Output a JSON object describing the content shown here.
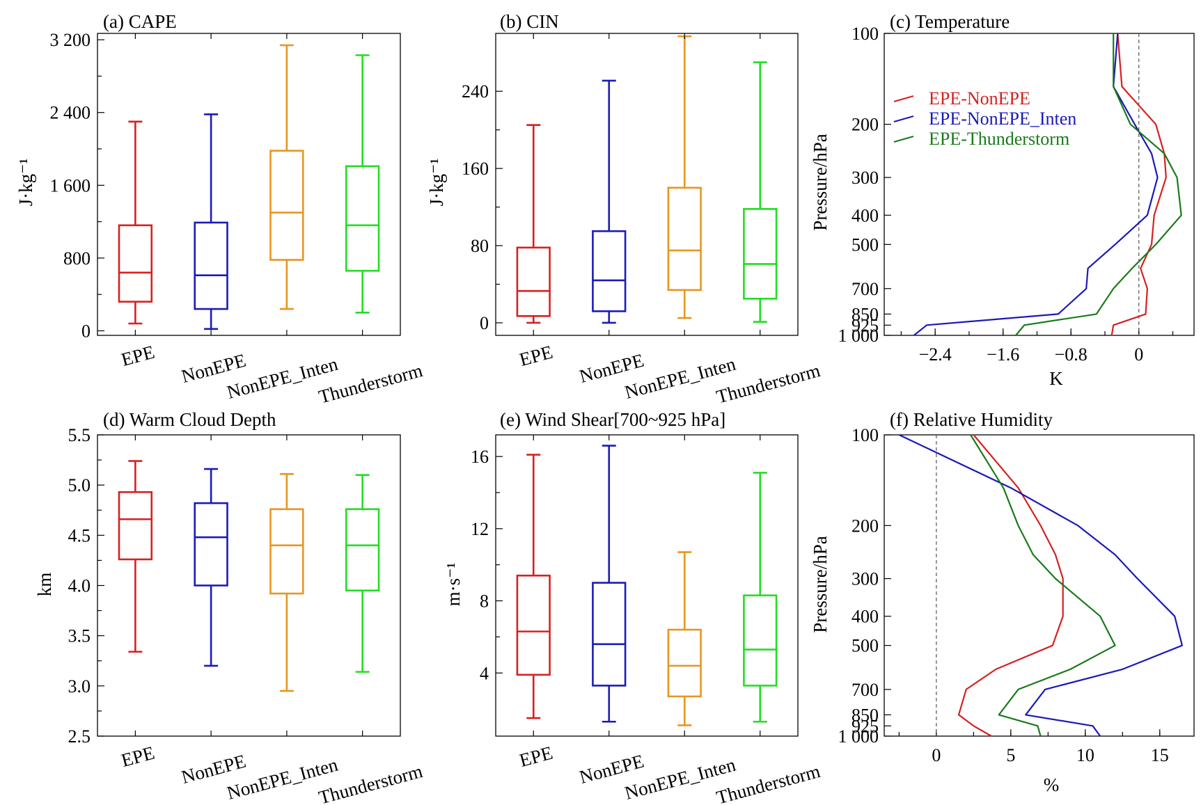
{
  "figure": {
    "panels": [
      {
        "id": "a",
        "title": "(a) CAPE",
        "ylabel": "J·kg⁻¹"
      },
      {
        "id": "b",
        "title": "(b) CIN",
        "ylabel": "J·kg⁻¹"
      },
      {
        "id": "c",
        "title": "(c) Temperature",
        "ylabel": "Pressure/hPa",
        "xlabel": "K"
      },
      {
        "id": "d",
        "title": "(d) Warm Cloud Depth",
        "ylabel": "km"
      },
      {
        "id": "e",
        "title": "(e) Wind Shear[700~925 hPa]",
        "ylabel": "m·s⁻¹"
      },
      {
        "id": "f",
        "title": "(f) Relative Humidity",
        "ylabel": "Pressure/hPa",
        "xlabel": "%"
      }
    ],
    "box_categories": [
      "EPE",
      "NonEPE",
      "NonEPE_Inten",
      "Thunderstorm"
    ],
    "colors": {
      "EPE": "#d62020",
      "NonEPE": "#1a1ab8",
      "NonEPE_Inten": "#e89520",
      "Thunderstorm": "#22dd22",
      "EPE-NonEPE": "#d62020",
      "EPE-NonEPE_Inten": "#1a1ab8",
      "EPE-Thunderstorm": "#1a7a1a"
    }
  },
  "chart_data": [
    {
      "panel": "a",
      "type": "box",
      "title": "(a) CAPE",
      "ylabel": "J·kg⁻¹",
      "ylim": [
        -50,
        3270
      ],
      "yticks": [
        0,
        800,
        1600,
        2400,
        3200
      ],
      "ytick_labels": [
        "0",
        "800",
        "1 600",
        "2 400",
        "3 200"
      ],
      "categories": [
        "EPE",
        "NonEPE",
        "NonEPE_Inten",
        "Thunderstorm"
      ],
      "boxes": [
        {
          "min": 80,
          "q1": 320,
          "median": 640,
          "q3": 1160,
          "max": 2300
        },
        {
          "min": 20,
          "q1": 240,
          "median": 610,
          "q3": 1190,
          "max": 2380
        },
        {
          "min": 240,
          "q1": 780,
          "median": 1300,
          "q3": 1980,
          "max": 3140
        },
        {
          "min": 200,
          "q1": 660,
          "median": 1160,
          "q3": 1810,
          "max": 3030
        }
      ]
    },
    {
      "panel": "b",
      "type": "box",
      "title": "(b) CIN",
      "ylabel": "J·kg⁻¹",
      "ylim": [
        -13,
        300
      ],
      "yticks": [
        0,
        80,
        160,
        240
      ],
      "ytick_labels": [
        "0",
        "80",
        "160",
        "240"
      ],
      "categories": [
        "EPE",
        "NonEPE",
        "NonEPE_Inten",
        "Thunderstorm"
      ],
      "boxes": [
        {
          "min": 0,
          "q1": 7,
          "median": 33,
          "q3": 78,
          "max": 205
        },
        {
          "min": 0,
          "q1": 12,
          "median": 44,
          "q3": 95,
          "max": 251
        },
        {
          "min": 5,
          "q1": 34,
          "median": 75,
          "q3": 140,
          "max": 297
        },
        {
          "min": 1,
          "q1": 25,
          "median": 61,
          "q3": 118,
          "max": 270
        }
      ]
    },
    {
      "panel": "c",
      "type": "line",
      "title": "(c) Temperature",
      "xlabel": "K",
      "ylabel": "Pressure/hPa",
      "xlim": [
        -3.0,
        0.65
      ],
      "xticks": [
        -2.4,
        -1.6,
        -0.8,
        0
      ],
      "xtick_labels": [
        "−2.4",
        "−1.6",
        "−0.8",
        "0"
      ],
      "y_levels": [
        100,
        150,
        200,
        250,
        300,
        400,
        500,
        600,
        700,
        850,
        925,
        1000
      ],
      "yticks": [
        100,
        200,
        300,
        400,
        500,
        700,
        850,
        925,
        1000
      ],
      "ytick_labels": [
        "100",
        "200",
        "300",
        "400",
        "500",
        "700",
        "850",
        "925",
        "1 000"
      ],
      "legend": "upper-left",
      "series": [
        {
          "name": "EPE-NonEPE",
          "values": [
            -0.25,
            -0.2,
            0.2,
            0.3,
            0.32,
            0.18,
            0.15,
            0.02,
            0.1,
            0.08,
            -0.3,
            -0.32
          ]
        },
        {
          "name": "EPE-NonEPE_Inten",
          "values": [
            -0.25,
            -0.3,
            -0.05,
            0.15,
            0.22,
            0.1,
            -0.28,
            -0.6,
            -0.62,
            -0.95,
            -2.5,
            -2.65
          ]
        },
        {
          "name": "EPE-Thunderstorm",
          "values": [
            -0.3,
            -0.3,
            -0.1,
            0.3,
            0.45,
            0.5,
            0.2,
            -0.08,
            -0.3,
            -0.5,
            -1.35,
            -1.45
          ]
        }
      ]
    },
    {
      "panel": "d",
      "type": "box",
      "title": "(d) Warm Cloud Depth",
      "ylabel": "km",
      "ylim": [
        2.5,
        5.5
      ],
      "yticks": [
        2.5,
        3.0,
        3.5,
        4.0,
        4.5,
        5.0,
        5.5
      ],
      "ytick_labels": [
        "2.5",
        "3.0",
        "3.5",
        "4.0",
        "4.5",
        "5.0",
        "5.5"
      ],
      "categories": [
        "EPE",
        "NonEPE",
        "NonEPE_Inten",
        "Thunderstorm"
      ],
      "boxes": [
        {
          "min": 3.34,
          "q1": 4.26,
          "median": 4.66,
          "q3": 4.93,
          "max": 5.24
        },
        {
          "min": 3.2,
          "q1": 4.0,
          "median": 4.48,
          "q3": 4.82,
          "max": 5.16
        },
        {
          "min": 2.95,
          "q1": 3.92,
          "median": 4.4,
          "q3": 4.76,
          "max": 5.11
        },
        {
          "min": 3.14,
          "q1": 3.95,
          "median": 4.4,
          "q3": 4.76,
          "max": 5.1
        }
      ]
    },
    {
      "panel": "e",
      "type": "box",
      "title": "(e) Wind Shear[700~925 hPa]",
      "ylabel": "m·s⁻¹",
      "ylim": [
        0.5,
        17.2
      ],
      "yticks": [
        4,
        8,
        12,
        16
      ],
      "ytick_labels": [
        "4",
        "8",
        "12",
        "16"
      ],
      "categories": [
        "EPE",
        "NonEPE",
        "NonEPE_Inten",
        "Thunderstorm"
      ],
      "boxes": [
        {
          "min": 1.5,
          "q1": 3.9,
          "median": 6.3,
          "q3": 9.4,
          "max": 16.1
        },
        {
          "min": 1.3,
          "q1": 3.3,
          "median": 5.6,
          "q3": 9.0,
          "max": 16.6
        },
        {
          "min": 1.1,
          "q1": 2.7,
          "median": 4.4,
          "q3": 6.4,
          "max": 10.7
        },
        {
          "min": 1.3,
          "q1": 3.3,
          "median": 5.3,
          "q3": 8.3,
          "max": 15.1
        }
      ]
    },
    {
      "panel": "f",
      "type": "line",
      "title": "(f) Relative Humidity",
      "xlabel": "%",
      "ylabel": "Pressure/hPa",
      "xlim": [
        -3.5,
        17.3
      ],
      "xticks": [
        0,
        5,
        10,
        15
      ],
      "xtick_labels": [
        "0",
        "5",
        "10",
        "15"
      ],
      "y_levels": [
        100,
        150,
        200,
        250,
        300,
        400,
        500,
        600,
        700,
        850,
        925,
        1000
      ],
      "yticks": [
        100,
        200,
        300,
        400,
        500,
        700,
        850,
        925,
        1000
      ],
      "ytick_labels": [
        "100",
        "200",
        "300",
        "400",
        "500",
        "700",
        "850",
        "925",
        "1 000"
      ],
      "series": [
        {
          "name": "EPE-NonEPE",
          "values": [
            2.5,
            5.5,
            7.0,
            8.0,
            8.5,
            8.5,
            7.8,
            4.0,
            2.0,
            1.5,
            2.5,
            3.7
          ]
        },
        {
          "name": "EPE-NonEPE_Inten",
          "values": [
            -2.5,
            5.0,
            9.5,
            12.0,
            13.5,
            16.0,
            16.5,
            12.5,
            7.3,
            6.0,
            10.5,
            11.0
          ]
        },
        {
          "name": "EPE-Thunderstorm",
          "values": [
            2.3,
            4.5,
            5.5,
            6.5,
            8.0,
            11.0,
            12.0,
            9.0,
            5.5,
            4.2,
            6.8,
            7.0
          ]
        }
      ]
    }
  ]
}
